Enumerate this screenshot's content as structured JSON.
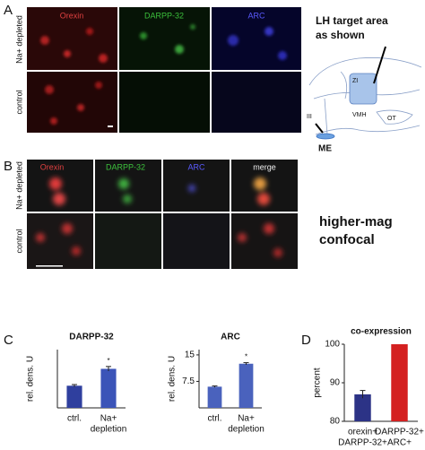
{
  "figure": {
    "panel_a": {
      "letter": "A",
      "columns": [
        "Orexin",
        "DARPP-32",
        "ARC"
      ],
      "rows": [
        "Na+ depleted",
        "control"
      ],
      "schematic_title": [
        "LH target area",
        "as shown"
      ],
      "schematic_labels": [
        "ZI",
        "VMH",
        "OT",
        "III",
        "ME"
      ]
    },
    "panel_b": {
      "letter": "B",
      "columns": [
        "Orexin",
        "DARPP-32",
        "ARC",
        "merge"
      ],
      "rows": [
        "Na+ depleted",
        "control"
      ],
      "side_text": [
        "higher-mag",
        "confocal"
      ]
    },
    "panel_c": {
      "letter": "C"
    },
    "panel_d": {
      "letter": "D"
    }
  },
  "chart_data": [
    {
      "type": "bar",
      "title": "DARPP-32",
      "ylabel": "rel. dens. U",
      "categories": [
        [
          "ctrl."
        ],
        [
          "Na+",
          "depletion"
        ]
      ],
      "values": [
        0.38,
        0.67
      ],
      "errors": [
        0.02,
        0.04
      ],
      "colors": [
        "#2f3f9e",
        "#3b54b8"
      ],
      "significance": [
        null,
        "*"
      ],
      "ylim": [
        0,
        1
      ]
    },
    {
      "type": "bar",
      "title": "ARC",
      "ylabel": "rel. dens. U",
      "categories": [
        [
          "ctrl."
        ],
        [
          "Na+",
          "depletion"
        ]
      ],
      "values": [
        6,
        12.5
      ],
      "errors": [
        0.2,
        0.3
      ],
      "colors": [
        "#4a62bd",
        "#4a62bd"
      ],
      "significance": [
        null,
        "*"
      ],
      "ylim": [
        0,
        16.5
      ],
      "yticks": [
        7.5,
        15
      ]
    },
    {
      "type": "bar",
      "title": "co-expression",
      "ylabel": "percent",
      "categories": [
        [
          "orexin+",
          "DARPP-32+"
        ],
        [
          "DARPP-32+",
          "ARC+"
        ]
      ],
      "values": [
        87,
        100
      ],
      "errors": [
        1,
        null
      ],
      "colors": [
        "#2c3386",
        "#d42020"
      ],
      "significance": [
        null,
        null
      ],
      "ylim": [
        80,
        100
      ],
      "yticks": [
        80,
        90,
        100
      ]
    }
  ]
}
